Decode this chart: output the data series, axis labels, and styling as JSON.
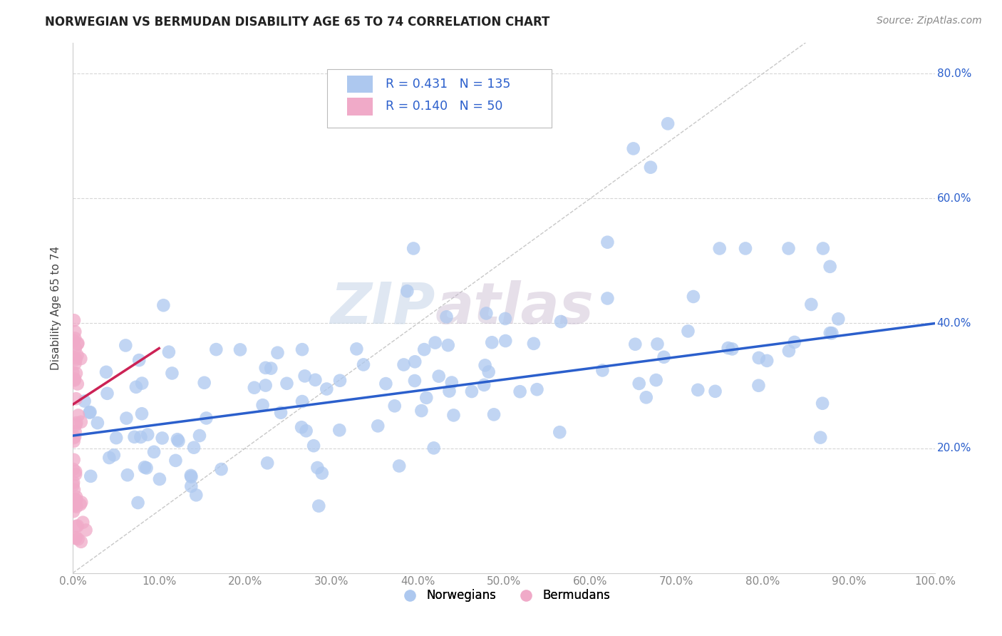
{
  "title": "NORWEGIAN VS BERMUDAN DISABILITY AGE 65 TO 74 CORRELATION CHART",
  "source": "Source: ZipAtlas.com",
  "ylabel": "Disability Age 65 to 74",
  "xlim": [
    0.0,
    1.0
  ],
  "ylim": [
    0.0,
    0.85
  ],
  "x_ticks": [
    0.0,
    0.1,
    0.2,
    0.3,
    0.4,
    0.5,
    0.6,
    0.7,
    0.8,
    0.9,
    1.0
  ],
  "x_tick_labels": [
    "0.0%",
    "10.0%",
    "20.0%",
    "30.0%",
    "40.0%",
    "50.0%",
    "60.0%",
    "70.0%",
    "80.0%",
    "90.0%",
    "100.0%"
  ],
  "y_tick_labels": [
    "20.0%",
    "40.0%",
    "60.0%",
    "80.0%"
  ],
  "y_ticks": [
    0.2,
    0.4,
    0.6,
    0.8
  ],
  "norwegian_R": 0.431,
  "norwegian_N": 135,
  "bermudan_R": 0.14,
  "bermudan_N": 50,
  "norwegian_color": "#adc8ef",
  "bermudan_color": "#f0aac8",
  "norwegian_line_color": "#2b5fcc",
  "bermudan_line_color": "#cc2255",
  "diagonal_color": "#cccccc",
  "legend_text_color": "#2b5fcc",
  "title_color": "#222222",
  "watermark_zip": "ZIP",
  "watermark_atlas": "atlas",
  "background_color": "#ffffff",
  "grid_color": "#cccccc",
  "norw_line_x0": 0.0,
  "norw_line_y0": 0.22,
  "norw_line_x1": 1.0,
  "norw_line_y1": 0.4,
  "berm_line_x0": 0.0,
  "berm_line_y0": 0.27,
  "berm_line_x1": 0.1,
  "berm_line_y1": 0.36
}
